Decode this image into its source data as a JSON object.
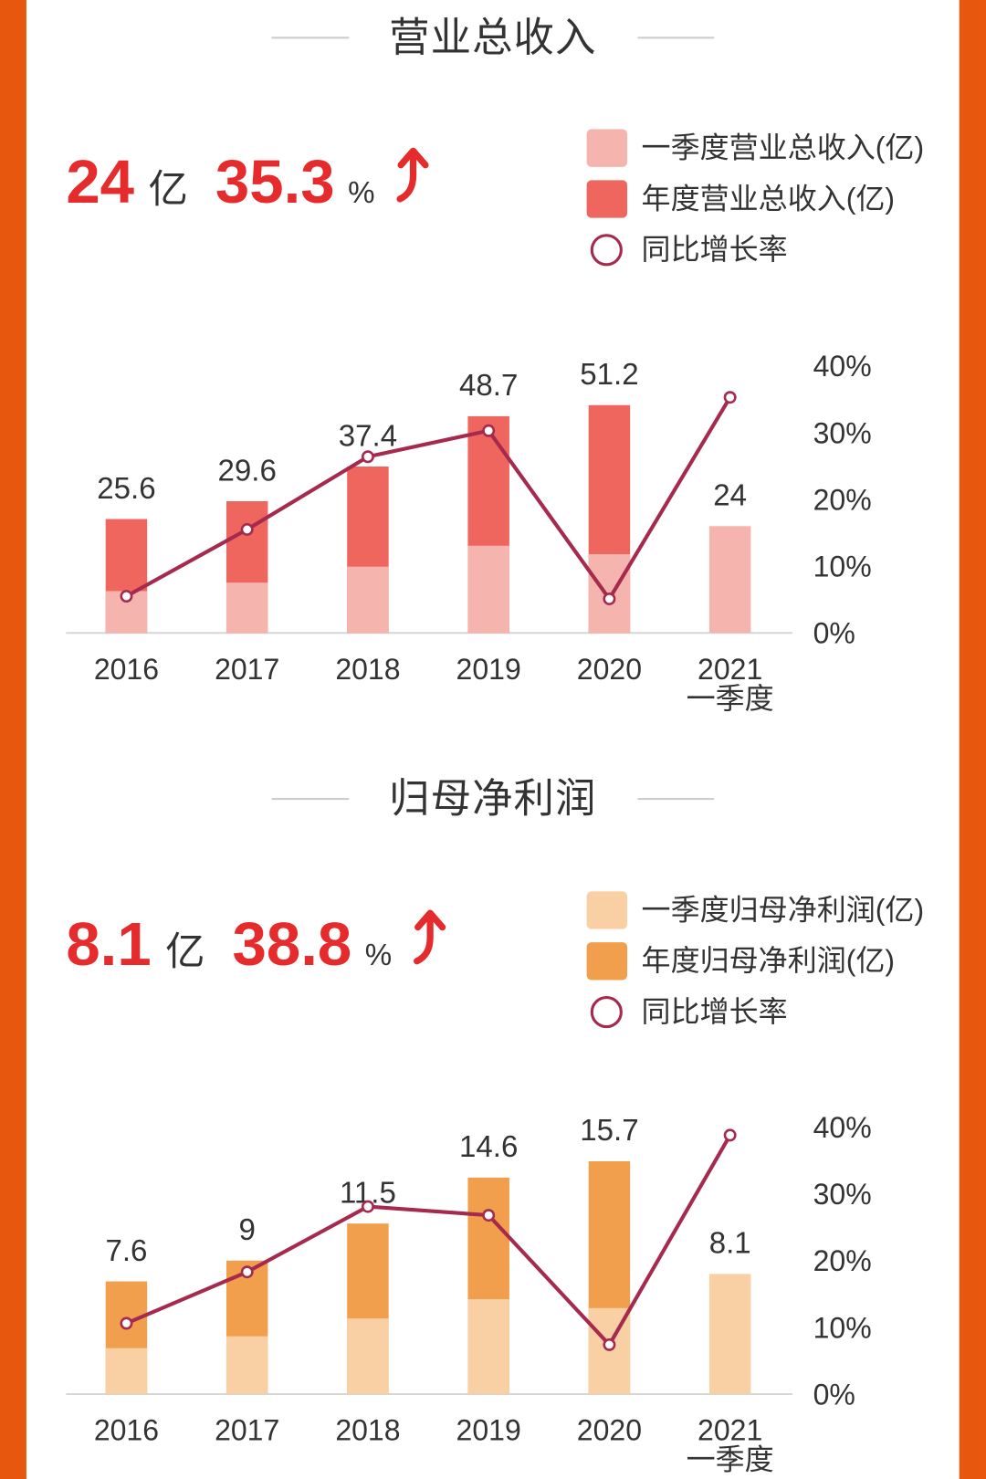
{
  "colors": {
    "border": "#e8570e",
    "highlight": "#e52b2b",
    "text": "#333333",
    "rule": "#cccccc"
  },
  "headlines": [
    {
      "value": "24",
      "unit": "亿",
      "growth": "35.3",
      "growth_unit": "%",
      "trend_icon": "up-arrow-icon"
    },
    {
      "value": "8.1",
      "unit": "亿",
      "growth": "38.8",
      "growth_unit": "%",
      "trend_icon": "up-arrow-icon"
    }
  ],
  "chart_data": [
    {
      "type": "bar",
      "bar_mode": "overlay",
      "title": "营业总收入",
      "categories": [
        [
          "2016"
        ],
        [
          "2017"
        ],
        [
          "2018"
        ],
        [
          "2019"
        ],
        [
          "2020"
        ],
        [
          "2021",
          "一季度"
        ]
      ],
      "series": [
        {
          "name": "一季度营业总收入(亿)",
          "kind": "bar",
          "marker": "square",
          "color": "#f6b4ae",
          "values": [
            9.4,
            11.3,
            14.9,
            19.6,
            17.7,
            24
          ]
        },
        {
          "name": "年度营业总收入(亿)",
          "kind": "bar",
          "marker": "square",
          "color": "#ef665f",
          "values": [
            25.6,
            29.6,
            37.4,
            48.7,
            51.2,
            null
          ]
        },
        {
          "name": "同比增长率",
          "kind": "line",
          "marker": "circle",
          "axis": "right",
          "color": "#a52a4d",
          "values": [
            5.5,
            15.5,
            26.4,
            30.3,
            5.1,
            35.3
          ]
        }
      ],
      "data_labels": [
        "25.6",
        "29.6",
        "37.4",
        "48.7",
        "51.2",
        "24"
      ],
      "ylim": [
        0,
        60
      ],
      "y2lim": [
        0,
        40
      ],
      "y2_ticks": [
        {
          "value": 40,
          "label": "40%"
        },
        {
          "value": 30,
          "label": "30%"
        },
        {
          "value": 20,
          "label": "20%"
        },
        {
          "value": 10,
          "label": "10%"
        },
        {
          "value": 0,
          "label": "0%"
        }
      ],
      "left_axis_visible": false,
      "grid": false,
      "legend_position": "top-right"
    },
    {
      "type": "bar",
      "bar_mode": "overlay",
      "title": "归母净利润",
      "categories": [
        [
          "2016"
        ],
        [
          "2017"
        ],
        [
          "2018"
        ],
        [
          "2019"
        ],
        [
          "2020"
        ],
        [
          "2021",
          "一季度"
        ]
      ],
      "series": [
        {
          "name": "一季度归母净利润(亿)",
          "kind": "bar",
          "marker": "square",
          "color": "#f9d0a4",
          "values": [
            3.1,
            3.9,
            5.1,
            6.4,
            5.8,
            8.1
          ]
        },
        {
          "name": "年度归母净利润(亿)",
          "kind": "bar",
          "marker": "square",
          "color": "#f19e4d",
          "values": [
            7.6,
            9,
            11.5,
            14.6,
            15.7,
            null
          ]
        },
        {
          "name": "同比增长率",
          "kind": "line",
          "marker": "circle",
          "axis": "right",
          "color": "#a52a4d",
          "values": [
            10.6,
            18.3,
            28.1,
            26.8,
            7.4,
            38.8
          ]
        }
      ],
      "data_labels": [
        "7.6",
        "9",
        "11.5",
        "14.6",
        "15.7",
        "8.1"
      ],
      "ylim": [
        0,
        18
      ],
      "y2lim": [
        0,
        40
      ],
      "y2_ticks": [
        {
          "value": 40,
          "label": "40%"
        },
        {
          "value": 30,
          "label": "30%"
        },
        {
          "value": 20,
          "label": "20%"
        },
        {
          "value": 10,
          "label": "10%"
        },
        {
          "value": 0,
          "label": "0%"
        }
      ],
      "left_axis_visible": false,
      "grid": false,
      "legend_position": "top-right"
    }
  ]
}
